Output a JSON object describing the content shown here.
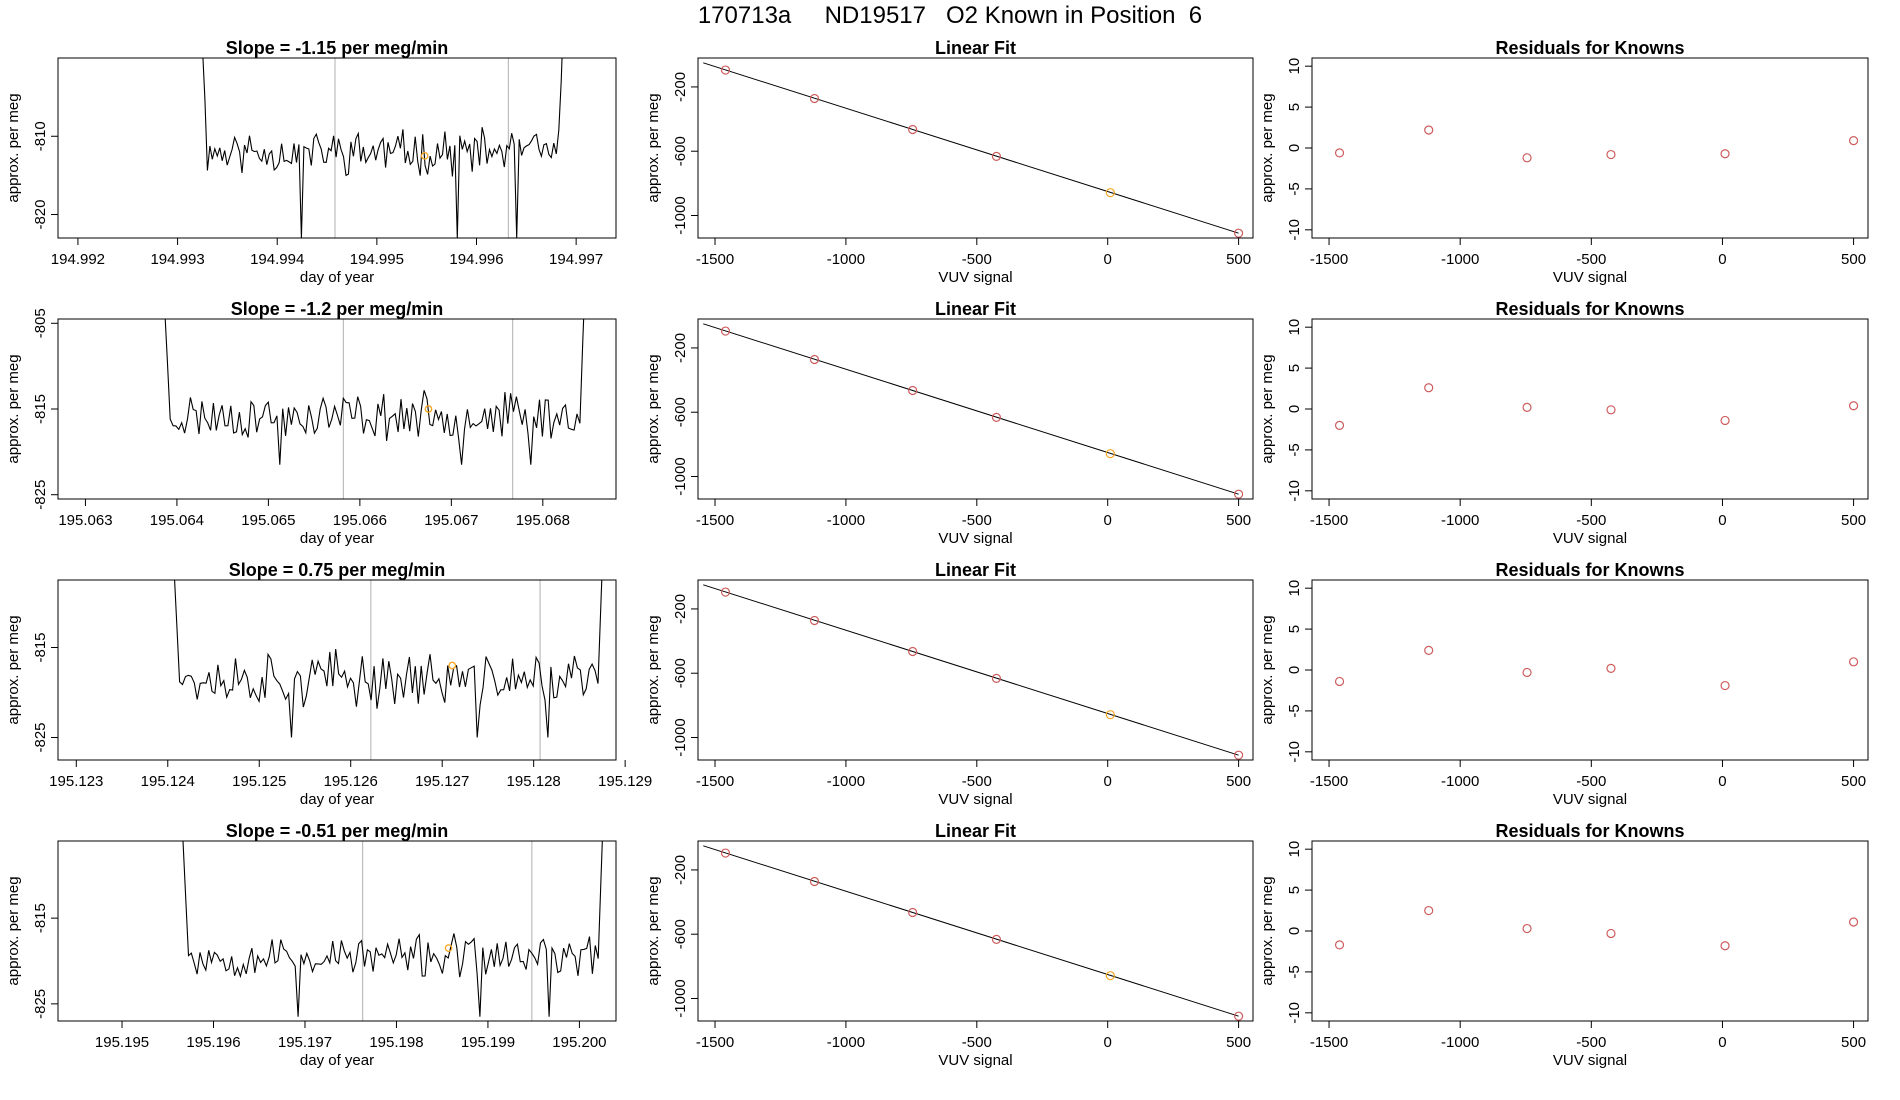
{
  "page_title": "170713a     ND19517   O2 Known in Position  6",
  "colors": {
    "line": "#000000",
    "known_point": "#cd5c5c",
    "highlight_point": "#f5a623",
    "vline": "#bdbdbd"
  },
  "chart_data": [
    {
      "row": 0,
      "timeseries": {
        "type": "line",
        "title": "Slope =  -1.15  per meg/min",
        "xlabel": "day of year",
        "ylabel": "approx. per meg",
        "xlim": [
          194.9918,
          194.9974
        ],
        "ylim": [
          -823,
          -800
        ],
        "xticks": [
          194.992,
          194.993,
          194.994,
          194.995,
          194.996,
          194.997
        ],
        "xtick_labels": [
          "194.992",
          "194.993",
          "194.994",
          "194.995",
          "194.996",
          "194.997"
        ],
        "yticks": [
          -810,
          -820
        ],
        "ytick_labels": [
          "-810",
          "-820"
        ],
        "vlines": [
          194.99458,
          194.99632
        ],
        "x_start": 194.9932,
        "x_end": 194.9969,
        "seed": 11,
        "mean": -812.0,
        "noise": 2.2,
        "spike_min": -823.0,
        "highlight": {
          "x": 194.99548,
          "y": -812.5
        }
      },
      "linear_fit": {
        "type": "scatter",
        "title": "Linear Fit",
        "xlabel": "VUV signal",
        "ylabel": "approx. per meg",
        "xlim": [
          -1565,
          555
        ],
        "ylim": [
          -1140,
          -20
        ],
        "xticks": [
          -1500,
          -1000,
          -500,
          0,
          500
        ],
        "xtick_labels": [
          "-1500",
          "-1000",
          "-500",
          "0",
          "500"
        ],
        "yticks": [
          -200,
          -600,
          -1000
        ],
        "ytick_labels": [
          "-200",
          "-600",
          "-1000"
        ],
        "line": [
          [
            -1545,
            -50
          ],
          [
            500,
            -1110
          ]
        ],
        "points": [
          [
            -1460,
            -95
          ],
          [
            -1120,
            -272
          ],
          [
            -745,
            -465
          ],
          [
            -425,
            -632
          ],
          [
            10,
            -858
          ],
          [
            500,
            -1110
          ]
        ],
        "highlight_index": 4
      },
      "residuals": {
        "type": "scatter",
        "title": "Residuals for Knowns",
        "ylabel": "approx. per meg",
        "xlabel": "VUV signal",
        "xlim": [
          -1565,
          555
        ],
        "ylim": [
          -11,
          11
        ],
        "xticks": [
          -1500,
          -1000,
          -500,
          0,
          500
        ],
        "xtick_labels": [
          "-1500",
          "-1000",
          "-500",
          "0",
          "500"
        ],
        "yticks": [
          10,
          5,
          0,
          -5,
          -10
        ],
        "ytick_labels": [
          "10",
          "5",
          "0",
          "-5",
          "-10"
        ],
        "points": [
          [
            -1460,
            -0.6
          ],
          [
            -1120,
            2.2
          ],
          [
            -745,
            -1.2
          ],
          [
            -425,
            -0.8
          ],
          [
            10,
            -0.7
          ],
          [
            500,
            0.9
          ]
        ]
      }
    },
    {
      "row": 1,
      "timeseries": {
        "type": "line",
        "title": "Slope =  -1.2  per meg/min",
        "xlabel": "day of year",
        "ylabel": "approx. per meg",
        "xlim": [
          195.0627,
          195.0688
        ],
        "ylim": [
          -825.5,
          -804.5
        ],
        "xticks": [
          195.063,
          195.064,
          195.065,
          195.066,
          195.067,
          195.068
        ],
        "xtick_labels": [
          "195.063",
          "195.064",
          "195.065",
          "195.066",
          "195.067",
          "195.068"
        ],
        "yticks": [
          -805,
          -815,
          -825
        ],
        "ytick_labels": [
          "-805",
          "-815",
          "-825"
        ],
        "vlines": [
          195.06582,
          195.06767
        ],
        "x_start": 195.0638,
        "x_end": 195.0685,
        "seed": 23,
        "mean": -815.8,
        "noise": 2.1,
        "spike_min": -821.5,
        "highlight": {
          "x": 195.06675,
          "y": -815.0
        }
      },
      "linear_fit": {
        "type": "scatter",
        "title": "Linear Fit",
        "xlabel": "VUV signal",
        "ylabel": "approx. per meg",
        "xlim": [
          -1565,
          555
        ],
        "ylim": [
          -1140,
          -20
        ],
        "xticks": [
          -1500,
          -1000,
          -500,
          0,
          500
        ],
        "xtick_labels": [
          "-1500",
          "-1000",
          "-500",
          "0",
          "500"
        ],
        "yticks": [
          -200,
          -600,
          -1000
        ],
        "ytick_labels": [
          "-200",
          "-600",
          "-1000"
        ],
        "line": [
          [
            -1545,
            -50
          ],
          [
            500,
            -1110
          ]
        ],
        "points": [
          [
            -1460,
            -95
          ],
          [
            -1120,
            -272
          ],
          [
            -745,
            -465
          ],
          [
            -425,
            -632
          ],
          [
            10,
            -858
          ],
          [
            500,
            -1110
          ]
        ],
        "highlight_index": 4
      },
      "residuals": {
        "type": "scatter",
        "title": "Residuals for Knowns",
        "ylabel": "approx. per meg",
        "xlabel": "VUV signal",
        "xlim": [
          -1565,
          555
        ],
        "ylim": [
          -11,
          11
        ],
        "xticks": [
          -1500,
          -1000,
          -500,
          0,
          500
        ],
        "xtick_labels": [
          "-1500",
          "-1000",
          "-500",
          "0",
          "500"
        ],
        "yticks": [
          10,
          5,
          0,
          -5,
          -10
        ],
        "ytick_labels": [
          "10",
          "5",
          "0",
          "-5",
          "-10"
        ],
        "points": [
          [
            -1460,
            -2.0
          ],
          [
            -1120,
            2.6
          ],
          [
            -745,
            0.2
          ],
          [
            -425,
            -0.1
          ],
          [
            10,
            -1.4
          ],
          [
            500,
            0.4
          ]
        ]
      }
    },
    {
      "row": 2,
      "timeseries": {
        "type": "line",
        "title": "Slope =  0.75  per meg/min",
        "xlabel": "day of year",
        "ylabel": "approx. per meg",
        "xlim": [
          195.1228,
          195.1289
        ],
        "ylim": [
          -827.5,
          -807.5
        ],
        "xticks": [
          195.123,
          195.124,
          195.125,
          195.126,
          195.127,
          195.128,
          195.129
        ],
        "xtick_labels": [
          "195.123",
          "195.124",
          "195.125",
          "195.126",
          "195.127",
          "195.128",
          "195.129"
        ],
        "yticks": [
          -815,
          -825
        ],
        "ytick_labels": [
          "-815",
          "-825"
        ],
        "vlines": [
          195.12622,
          195.12807
        ],
        "x_start": 195.124,
        "x_end": 195.1288,
        "seed": 37,
        "mean": -818.5,
        "noise": 2.4,
        "spike_min": -825.0,
        "highlight": {
          "x": 195.12711,
          "y": -817.0
        }
      },
      "linear_fit": {
        "type": "scatter",
        "title": "Linear Fit",
        "xlabel": "VUV signal",
        "ylabel": "approx. per meg",
        "xlim": [
          -1565,
          555
        ],
        "ylim": [
          -1140,
          -20
        ],
        "xticks": [
          -1500,
          -1000,
          -500,
          0,
          500
        ],
        "xtick_labels": [
          "-1500",
          "-1000",
          "-500",
          "0",
          "500"
        ],
        "yticks": [
          -200,
          -600,
          -1000
        ],
        "ytick_labels": [
          "-200",
          "-600",
          "-1000"
        ],
        "line": [
          [
            -1545,
            -50
          ],
          [
            500,
            -1110
          ]
        ],
        "points": [
          [
            -1460,
            -95
          ],
          [
            -1120,
            -272
          ],
          [
            -745,
            -465
          ],
          [
            -425,
            -632
          ],
          [
            10,
            -858
          ],
          [
            500,
            -1110
          ]
        ],
        "highlight_index": 4
      },
      "residuals": {
        "type": "scatter",
        "title": "Residuals for Knowns",
        "ylabel": "approx. per meg",
        "xlabel": "VUV signal",
        "xlim": [
          -1565,
          555
        ],
        "ylim": [
          -11,
          11
        ],
        "xticks": [
          -1500,
          -1000,
          -500,
          0,
          500
        ],
        "xtick_labels": [
          "-1500",
          "-1000",
          "-500",
          "0",
          "500"
        ],
        "yticks": [
          10,
          5,
          0,
          -5,
          -10
        ],
        "ytick_labels": [
          "10",
          "5",
          "0",
          "-5",
          "-10"
        ],
        "points": [
          [
            -1460,
            -1.4
          ],
          [
            -1120,
            2.4
          ],
          [
            -745,
            -0.3
          ],
          [
            -425,
            0.2
          ],
          [
            10,
            -1.9
          ],
          [
            500,
            1.0
          ]
        ]
      }
    },
    {
      "row": 3,
      "timeseries": {
        "type": "line",
        "title": "Slope =  -0.51  per meg/min",
        "xlabel": "day of year",
        "ylabel": "approx. per meg",
        "xlim": [
          195.1943,
          195.2004
        ],
        "ylim": [
          -827,
          -806
        ],
        "xticks": [
          195.195,
          195.196,
          195.197,
          195.198,
          195.199,
          195.2
        ],
        "xtick_labels": [
          "195.195",
          "195.196",
          "195.197",
          "195.198",
          "195.199",
          "195.200"
        ],
        "yticks": [
          -815,
          -825
        ],
        "ytick_labels": [
          "-815",
          "-825"
        ],
        "vlines": [
          195.19763,
          195.19948
        ],
        "x_start": 195.1956,
        "x_end": 195.2003,
        "seed": 53,
        "mean": -819.5,
        "noise": 1.9,
        "spike_min": -826.5,
        "highlight": {
          "x": 195.19857,
          "y": -818.5
        }
      },
      "linear_fit": {
        "type": "scatter",
        "title": "Linear Fit",
        "xlabel": "VUV signal",
        "ylabel": "approx. per meg",
        "xlim": [
          -1565,
          555
        ],
        "ylim": [
          -1140,
          -20
        ],
        "xticks": [
          -1500,
          -1000,
          -500,
          0,
          500
        ],
        "xtick_labels": [
          "-1500",
          "-1000",
          "-500",
          "0",
          "500"
        ],
        "yticks": [
          -200,
          -600,
          -1000
        ],
        "ytick_labels": [
          "-200",
          "-600",
          "-1000"
        ],
        "line": [
          [
            -1545,
            -50
          ],
          [
            500,
            -1110
          ]
        ],
        "points": [
          [
            -1460,
            -95
          ],
          [
            -1120,
            -272
          ],
          [
            -745,
            -465
          ],
          [
            -425,
            -632
          ],
          [
            10,
            -858
          ],
          [
            500,
            -1110
          ]
        ],
        "highlight_index": 4
      },
      "residuals": {
        "type": "scatter",
        "title": "Residuals for Knowns",
        "ylabel": "approx. per meg",
        "xlabel": "VUV signal",
        "xlim": [
          -1565,
          555
        ],
        "ylim": [
          -11,
          11
        ],
        "xticks": [
          -1500,
          -1000,
          -500,
          0,
          500
        ],
        "xtick_labels": [
          "-1500",
          "-1000",
          "-500",
          "0",
          "500"
        ],
        "yticks": [
          10,
          5,
          0,
          -5,
          -10
        ],
        "ytick_labels": [
          "10",
          "5",
          "0",
          "-5",
          "-10"
        ],
        "points": [
          [
            -1460,
            -1.7
          ],
          [
            -1120,
            2.5
          ],
          [
            -745,
            0.3
          ],
          [
            -425,
            -0.3
          ],
          [
            10,
            -1.8
          ],
          [
            500,
            1.1
          ]
        ]
      }
    }
  ]
}
